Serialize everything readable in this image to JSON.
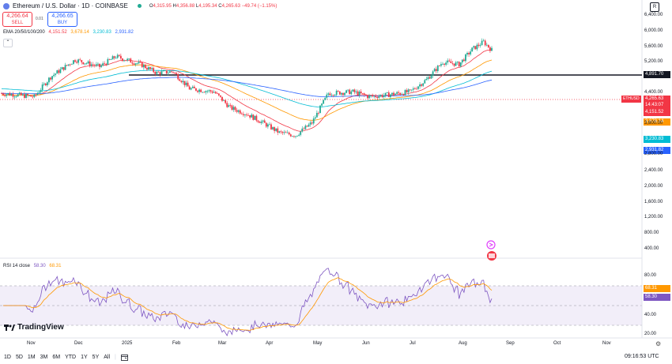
{
  "header": {
    "title": "Ethereum / U.S. Dollar · 1D · COINBASE",
    "ohlc": {
      "o_label": "O",
      "o": "4,315.95",
      "h_label": "H",
      "h": "4,356.88",
      "l_label": "L",
      "l": "4,195.34",
      "c_label": "C",
      "c": "4,265.63",
      "change": "−49.74 (−1.15%)"
    },
    "sell": {
      "price": "4,266.64",
      "label": "SELL"
    },
    "buy": {
      "price": "4,266.65",
      "label": "BUY"
    },
    "spread": "0.01",
    "ema_label": "EMA 20/50/100/200",
    "ema_values": [
      "4,151.52",
      "3,678.14",
      "3,230.83",
      "2,931.82"
    ],
    "collapse_icon": "chevron-up-icon",
    "r_icon": "R"
  },
  "price_axis": {
    "ticks": [
      "6,400.00",
      "6,000.00",
      "5,600.00",
      "5,200.00",
      "4,400.00",
      "3,600.00",
      "2,800.00",
      "2,400.00",
      "2,000.00",
      "1,600.00",
      "1,200.00",
      "800.00",
      "400.00"
    ],
    "labels": {
      "hline": "4,891.70",
      "last": "4,265.63",
      "countdown": "14:43:07",
      "ema20": "4,151.52",
      "ema50": "3,678.14",
      "ema100": "3,230.83",
      "ema200": "2,931.82"
    },
    "symbol_tag": "ETHUSD"
  },
  "rsi": {
    "label": "RSI 14 close",
    "value": "58.30",
    "ma_value": "68.31",
    "ticks": [
      "80.00",
      "40.00",
      "20.00"
    ],
    "value_label": "58.30",
    "ma_label": "68.31"
  },
  "time_axis": {
    "months": [
      "Nov",
      "Dec",
      "2025",
      "Feb",
      "Mar",
      "Apr",
      "May",
      "Jun",
      "Jul",
      "Aug",
      "Sep",
      "Oct",
      "Nov"
    ]
  },
  "brand": "TradingView",
  "toolbar": {
    "timeframes": [
      "1D",
      "5D",
      "1M",
      "3M",
      "6M",
      "YTD",
      "1Y",
      "5Y",
      "All"
    ],
    "compare_icon": "calendar-range-icon"
  },
  "clock": "09:16:53 UTC",
  "colors": {
    "up": "#22ab94",
    "down": "#f23645",
    "ema20": "#f23645",
    "ema50": "#ff9800",
    "ema100": "#00bcd4",
    "ema200": "#2962ff",
    "rsi": "#7e57c2"
  },
  "chart_data": {
    "type": "candlestick",
    "symbol": "ETHUSD",
    "interval": "1D",
    "y_scale": "log",
    "x_range": [
      "2024-10-20",
      "2025-11-30"
    ],
    "hline": 4891.7,
    "closes_monthly": [
      {
        "month": "Nov 2024",
        "close": 3700
      },
      {
        "month": "Dec 2024",
        "close": 3330
      },
      {
        "month": "Jan 2025",
        "close": 3300
      },
      {
        "month": "Feb 2025",
        "close": 2240
      },
      {
        "month": "Mar 2025",
        "close": 1820
      },
      {
        "month": "Apr 2025",
        "close": 1790
      },
      {
        "month": "May 2025",
        "close": 2530
      },
      {
        "month": "Jun 2025",
        "close": 2490
      },
      {
        "month": "Jul 2025",
        "close": 3700
      },
      {
        "month": "Aug 2025",
        "close": 4265.63
      }
    ],
    "last_close": 4265.63,
    "ema": {
      "20": 4151.52,
      "50": 3678.14,
      "100": 3230.83,
      "200": 2931.82
    },
    "rsi": {
      "value": 58.3,
      "ma": 68.31,
      "upper": 70,
      "lower": 30
    }
  }
}
